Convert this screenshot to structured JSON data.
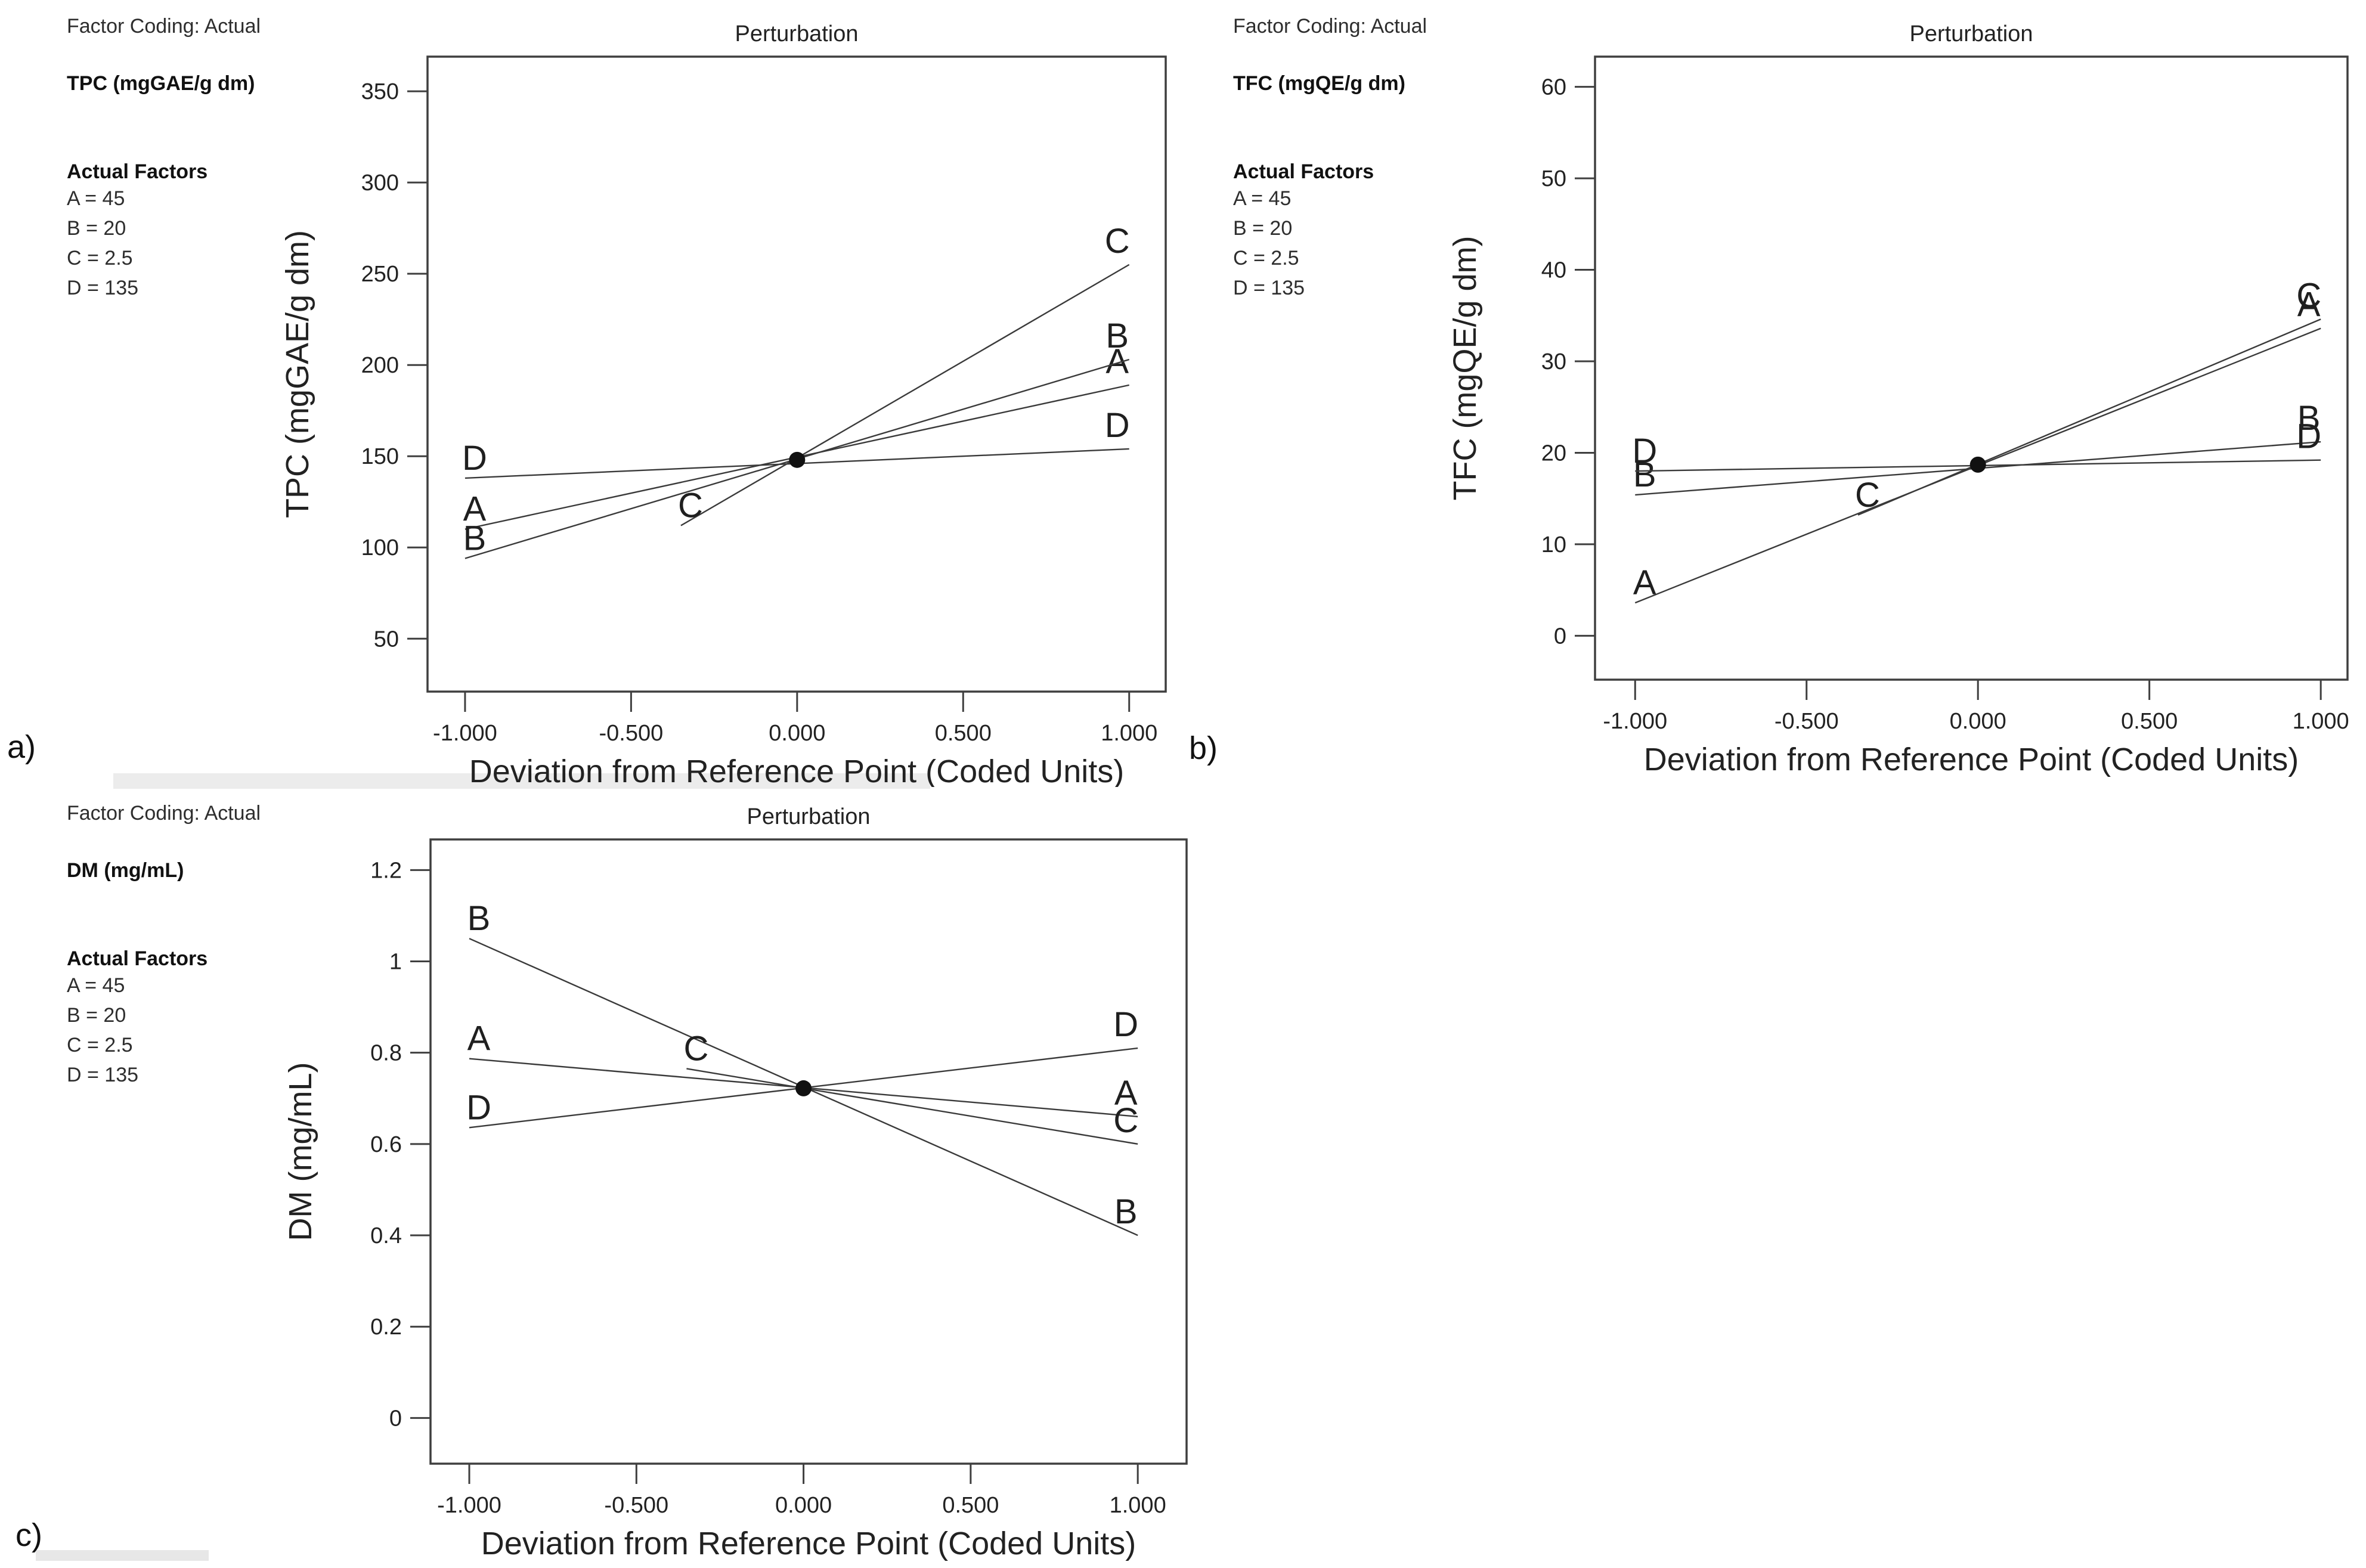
{
  "page": {
    "background": "#ffffff",
    "text_color": "#222222",
    "line_color": "#3a3a3a",
    "border_color": "#3f3f3f"
  },
  "panels": [
    {
      "id": "a",
      "label": "a)"
    },
    {
      "id": "b",
      "label": "b)"
    },
    {
      "id": "c",
      "label": "c)"
    }
  ],
  "chart_data": [
    {
      "type": "line",
      "panel": "a)",
      "title": "Perturbation",
      "xlabel": "Deviation from Reference Point (Coded Units)",
      "ylabel": "TPC (mgGAE/g dm)",
      "info": {
        "factor_coding": "Factor Coding: Actual",
        "response": "TPC (mgGAE/g dm)",
        "actual_factors_heading": "Actual Factors",
        "factors": [
          "A = 45",
          "B = 20",
          "C = 2.5",
          "D = 135"
        ]
      },
      "xlim": [
        -1.113,
        1.11
      ],
      "ylim": [
        21,
        369
      ],
      "x_ticks": [
        {
          "v": -1,
          "label": "-1.000"
        },
        {
          "v": -0.5,
          "label": "-0.500"
        },
        {
          "v": 0,
          "label": "0.000"
        },
        {
          "v": 0.5,
          "label": "0.500"
        },
        {
          "v": 1,
          "label": "1.000"
        }
      ],
      "y_ticks": [
        {
          "v": 50,
          "label": "50"
        },
        {
          "v": 100,
          "label": "100"
        },
        {
          "v": 150,
          "label": "150"
        },
        {
          "v": 200,
          "label": "200"
        },
        {
          "v": 250,
          "label": "250"
        },
        {
          "v": 300,
          "label": "300"
        },
        {
          "v": 350,
          "label": "350"
        }
      ],
      "reference_point": {
        "x": 0,
        "y": 148
      },
      "series": [
        {
          "name": "A",
          "x": [
            -1,
            1
          ],
          "y": [
            110,
            189
          ]
        },
        {
          "name": "B",
          "x": [
            -1,
            1
          ],
          "y": [
            94,
            203
          ]
        },
        {
          "name": "C",
          "x": [
            -0.35,
            1
          ],
          "y": [
            112,
            255
          ]
        },
        {
          "name": "D",
          "x": [
            -1,
            1
          ],
          "y": [
            138,
            154
          ]
        }
      ]
    },
    {
      "type": "line",
      "panel": "b)",
      "title": "Perturbation",
      "xlabel": "Deviation from Reference Point (Coded Units)",
      "ylabel": "TFC (mgQE/g dm)",
      "info": {
        "factor_coding": "Factor Coding: Actual",
        "response": "TFC (mgQE/g dm)",
        "actual_factors_heading": "Actual Factors",
        "factors": [
          "A = 45",
          "B = 20",
          "C = 2.5",
          "D = 135"
        ]
      },
      "xlim": [
        -1.117,
        1.078
      ],
      "ylim": [
        -4.8,
        63.3
      ],
      "x_ticks": [
        {
          "v": -1,
          "label": "-1.000"
        },
        {
          "v": -0.5,
          "label": "-0.500"
        },
        {
          "v": 0,
          "label": "0.000"
        },
        {
          "v": 0.5,
          "label": "0.500"
        },
        {
          "v": 1,
          "label": "1.000"
        }
      ],
      "y_ticks": [
        {
          "v": 0,
          "label": "0"
        },
        {
          "v": 10,
          "label": "10"
        },
        {
          "v": 20,
          "label": "20"
        },
        {
          "v": 30,
          "label": "30"
        },
        {
          "v": 40,
          "label": "40"
        },
        {
          "v": 50,
          "label": "50"
        },
        {
          "v": 60,
          "label": "60"
        }
      ],
      "reference_point": {
        "x": 0,
        "y": 18.7
      },
      "series": [
        {
          "name": "A",
          "x": [
            -1,
            1
          ],
          "y": [
            3.6,
            33.6
          ]
        },
        {
          "name": "B",
          "x": [
            -1,
            1
          ],
          "y": [
            15.4,
            21.2
          ]
        },
        {
          "name": "C",
          "x": [
            -0.35,
            1
          ],
          "y": [
            13.2,
            34.6
          ]
        },
        {
          "name": "D",
          "x": [
            -1,
            1
          ],
          "y": [
            18.0,
            19.2
          ]
        }
      ]
    },
    {
      "type": "line",
      "panel": "c)",
      "title": "Perturbation",
      "xlabel": "Deviation from Reference Point (Coded Units)",
      "ylabel": "DM (mg/mL)",
      "info": {
        "factor_coding": "Factor Coding: Actual",
        "response": "DM (mg/mL)",
        "actual_factors_heading": "Actual Factors",
        "factors": [
          "A = 45",
          "B = 20",
          "C = 2.5",
          "D = 135"
        ]
      },
      "xlim": [
        -1.116,
        1.146
      ],
      "ylim": [
        -0.1,
        1.267
      ],
      "x_ticks": [
        {
          "v": -1,
          "label": "-1.000"
        },
        {
          "v": -0.5,
          "label": "-0.500"
        },
        {
          "v": 0,
          "label": "0.000"
        },
        {
          "v": 0.5,
          "label": "0.500"
        },
        {
          "v": 1,
          "label": "1.000"
        }
      ],
      "y_ticks": [
        {
          "v": 0,
          "label": "0"
        },
        {
          "v": 0.2,
          "label": "0.2"
        },
        {
          "v": 0.4,
          "label": "0.4"
        },
        {
          "v": 0.6,
          "label": "0.6"
        },
        {
          "v": 0.8,
          "label": "0.8"
        },
        {
          "v": 1,
          "label": "1"
        },
        {
          "v": 1.2,
          "label": "1.2"
        }
      ],
      "reference_point": {
        "x": 0,
        "y": 0.722
      },
      "series": [
        {
          "name": "A",
          "x": [
            -1,
            1
          ],
          "y": [
            0.787,
            0.66
          ]
        },
        {
          "name": "B",
          "x": [
            -1,
            1
          ],
          "y": [
            1.05,
            0.4
          ]
        },
        {
          "name": "C",
          "x": [
            -0.35,
            1
          ],
          "y": [
            0.765,
            0.6
          ]
        },
        {
          "name": "D",
          "x": [
            -1,
            1
          ],
          "y": [
            0.636,
            0.81
          ]
        }
      ]
    }
  ]
}
